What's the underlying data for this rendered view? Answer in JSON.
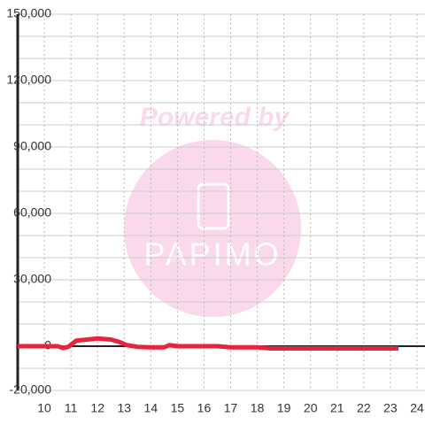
{
  "chart_data": {
    "type": "line",
    "x": [
      9,
      10,
      10.5,
      10.7,
      10.9,
      11.2,
      11.6,
      12,
      12.5,
      12.8,
      13.1,
      13.5,
      14,
      14.5,
      14.7,
      15,
      16,
      16.5,
      17,
      18,
      18.5,
      19,
      20,
      21,
      22,
      23,
      23.3
    ],
    "series": [
      {
        "color": "#e8243c",
        "values": [
          0,
          0,
          0,
          -800,
          -300,
          2500,
          3000,
          3500,
          3000,
          2000,
          500,
          -300,
          -500,
          -500,
          500,
          0,
          0,
          0,
          -500,
          -500,
          -1000,
          -1000,
          -1000,
          -1000,
          -1000,
          -1000,
          -1000
        ]
      }
    ],
    "xlim": [
      9,
      24.3
    ],
    "xticks": [
      10,
      11,
      12,
      13,
      14,
      15,
      16,
      17,
      18,
      19,
      20,
      21,
      22,
      23,
      24
    ],
    "ylim": [
      -20000,
      150000
    ],
    "yticks": [
      {
        "value": -20000,
        "label": "-20,000"
      },
      0,
      {
        "value": 30000,
        "label": "30,000"
      },
      {
        "value": 60000,
        "label": "60,000"
      },
      {
        "value": 90000,
        "label": "90,000"
      },
      {
        "value": 120000,
        "label": "120,000"
      },
      {
        "value": 150000,
        "label": "150,000"
      }
    ],
    "yminor": [
      -10000,
      10000,
      20000,
      40000,
      50000,
      70000,
      80000,
      100000,
      110000,
      130000,
      140000
    ],
    "grid": true,
    "watermark": {
      "text": "Powered by",
      "logo": "PAPIMO"
    }
  }
}
